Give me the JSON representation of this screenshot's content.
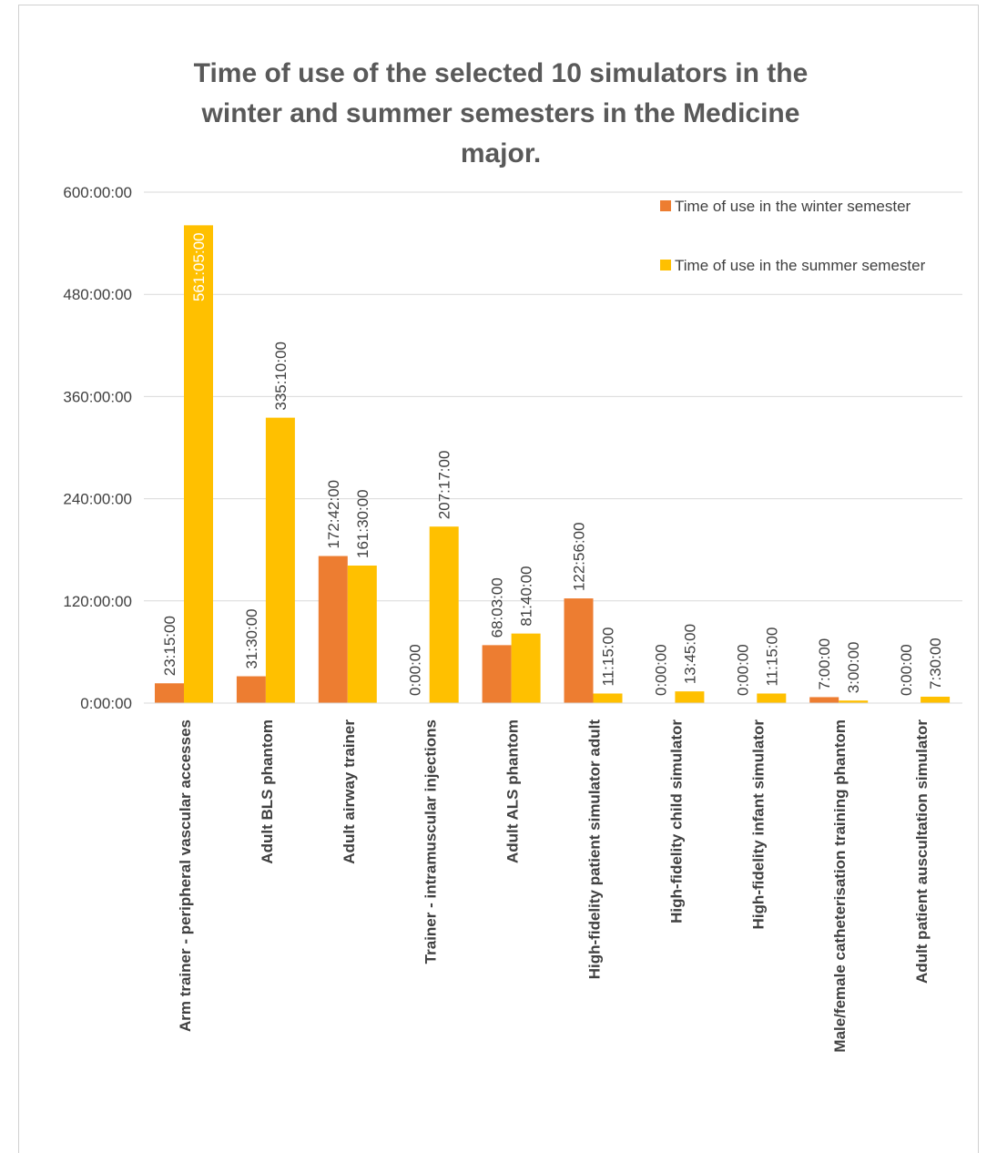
{
  "chart_data": {
    "type": "bar",
    "title": "Time of use of the selected 10 simulators in the winter and summer semesters in the Medicine major.",
    "categories": [
      "Arm trainer - peripheral vascular accesses",
      "Adult BLS phantom",
      "Adult airway trainer",
      "Trainer - intramuscular injections",
      "Adult ALS phantom",
      "High-fidelity patient simulator adult",
      "High-fidelity child simulator",
      "High-fidelity infant simulator",
      "Male/female catheterisation training phantom",
      "Adult patient auscultation simulator"
    ],
    "series": [
      {
        "name": "Time of use in the winter semester",
        "color": "#ED7D31",
        "values": [
          23.25,
          31.5,
          172.7,
          0,
          68.05,
          122.9333,
          0,
          0,
          7,
          0
        ],
        "value_labels": [
          "23:15:00",
          "31:30:00",
          "172:42:00",
          "0:00:00",
          "68:03:00",
          "122:56:00",
          "0:00:00",
          "0:00:00",
          "7:00:00",
          "0:00:00"
        ]
      },
      {
        "name": "Time of use in the summer semester",
        "color": "#FFC000",
        "values": [
          561.0833,
          335.1667,
          161.5,
          207.2833,
          81.6667,
          11.25,
          13.75,
          11.25,
          3,
          7.5
        ],
        "value_labels": [
          "561:05:00",
          "335:10:00",
          "161:30:00",
          "207:17:00",
          "81:40:00",
          "11:15:00",
          "13:45:00",
          "11:15:00",
          "3:00:00",
          "7:30:00"
        ]
      }
    ],
    "ylim": [
      0,
      600
    ],
    "yticks": [
      {
        "value": 0,
        "label": "0:00:00"
      },
      {
        "value": 120,
        "label": "120:00:00"
      },
      {
        "value": 240,
        "label": "240:00:00"
      },
      {
        "value": 360,
        "label": "360:00:00"
      },
      {
        "value": 480,
        "label": "480:00:00"
      },
      {
        "value": 600,
        "label": "600:00:00"
      }
    ],
    "grid": true,
    "legend": "top-right"
  }
}
